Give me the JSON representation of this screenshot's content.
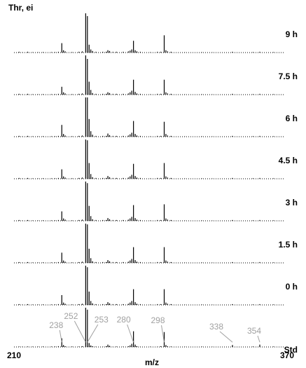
{
  "chart_data": {
    "type": "stick",
    "title": "Thr, ei",
    "xlabel": "m/z",
    "xlim": [
      210,
      370
    ],
    "xticks": [
      210,
      370
    ],
    "ylim": [
      0,
      100
    ],
    "color": "#000000",
    "x": [
      213,
      215,
      218,
      221,
      224,
      227,
      232,
      234,
      236,
      238,
      239,
      240,
      244,
      248,
      250,
      252,
      253,
      254,
      255,
      256,
      258,
      262,
      264,
      265,
      266,
      268,
      270,
      274,
      277,
      278,
      279,
      280,
      281,
      282,
      284,
      290,
      294,
      296,
      298,
      299,
      300,
      302,
      310,
      320,
      326,
      338,
      350,
      354,
      362
    ],
    "series": [
      {
        "name": "9 h",
        "values": [
          2,
          1,
          2,
          1,
          1,
          1,
          1,
          1,
          2,
          24,
          6,
          3,
          1,
          2,
          3,
          100,
          93,
          20,
          8,
          4,
          2,
          2,
          2,
          6,
          4,
          2,
          2,
          2,
          3,
          5,
          8,
          30,
          6,
          3,
          2,
          1,
          2,
          2,
          44,
          6,
          3,
          2,
          1,
          1,
          1,
          2,
          1,
          2,
          1
        ]
      },
      {
        "name": "7.5 h",
        "values": [
          2,
          1,
          2,
          1,
          1,
          1,
          1,
          1,
          2,
          20,
          6,
          3,
          1,
          2,
          3,
          100,
          91,
          33,
          12,
          4,
          2,
          2,
          2,
          6,
          4,
          2,
          2,
          2,
          3,
          6,
          10,
          38,
          7,
          3,
          2,
          1,
          2,
          2,
          38,
          6,
          3,
          2,
          1,
          1,
          1,
          2,
          1,
          2,
          1
        ]
      },
      {
        "name": "6 h",
        "values": [
          2,
          1,
          2,
          1,
          1,
          1,
          1,
          1,
          2,
          30,
          7,
          3,
          1,
          2,
          3,
          100,
          100,
          45,
          14,
          5,
          2,
          2,
          2,
          8,
          4,
          2,
          2,
          2,
          3,
          6,
          10,
          40,
          7,
          3,
          2,
          1,
          2,
          2,
          38,
          7,
          3,
          2,
          1,
          1,
          1,
          2,
          1,
          2,
          1
        ]
      },
      {
        "name": "4.5 h",
        "values": [
          2,
          1,
          2,
          1,
          1,
          1,
          1,
          1,
          2,
          24,
          6,
          3,
          1,
          2,
          3,
          100,
          98,
          40,
          12,
          4,
          2,
          2,
          2,
          7,
          4,
          2,
          2,
          2,
          3,
          6,
          10,
          38,
          7,
          3,
          2,
          1,
          2,
          2,
          40,
          6,
          3,
          2,
          1,
          1,
          1,
          2,
          1,
          2,
          1
        ]
      },
      {
        "name": "3 h",
        "values": [
          2,
          1,
          2,
          1,
          1,
          1,
          1,
          1,
          2,
          24,
          6,
          3,
          1,
          2,
          3,
          100,
          96,
          38,
          12,
          4,
          2,
          2,
          2,
          7,
          4,
          2,
          2,
          2,
          3,
          6,
          10,
          40,
          7,
          3,
          2,
          1,
          2,
          2,
          42,
          6,
          3,
          2,
          1,
          1,
          1,
          2,
          1,
          2,
          1
        ]
      },
      {
        "name": "1.5 h",
        "values": [
          2,
          1,
          2,
          1,
          1,
          1,
          1,
          1,
          2,
          26,
          6,
          3,
          1,
          2,
          3,
          100,
          98,
          36,
          12,
          4,
          2,
          2,
          2,
          7,
          4,
          2,
          2,
          2,
          3,
          6,
          10,
          40,
          7,
          3,
          2,
          1,
          2,
          2,
          40,
          6,
          3,
          2,
          1,
          1,
          1,
          2,
          1,
          2,
          1
        ]
      },
      {
        "name": "0 h",
        "values": [
          2,
          1,
          2,
          1,
          1,
          1,
          1,
          1,
          2,
          25,
          6,
          3,
          1,
          2,
          3,
          100,
          96,
          34,
          10,
          4,
          2,
          2,
          2,
          7,
          4,
          2,
          2,
          2,
          3,
          6,
          10,
          40,
          7,
          3,
          2,
          1,
          2,
          2,
          40,
          6,
          3,
          2,
          1,
          1,
          1,
          2,
          1,
          2,
          1
        ]
      },
      {
        "name": "Std",
        "values": [
          1,
          1,
          1,
          1,
          1,
          1,
          1,
          1,
          2,
          22,
          5,
          2,
          1,
          1,
          2,
          100,
          95,
          10,
          4,
          2,
          1,
          1,
          2,
          6,
          3,
          1,
          1,
          1,
          2,
          4,
          8,
          40,
          6,
          2,
          1,
          1,
          1,
          2,
          38,
          5,
          2,
          1,
          1,
          1,
          1,
          5,
          1,
          6,
          1
        ]
      }
    ],
    "annotations": [
      238,
      252,
      253,
      280,
      298,
      338,
      354
    ],
    "annotation_color": "#a0a0a0"
  }
}
